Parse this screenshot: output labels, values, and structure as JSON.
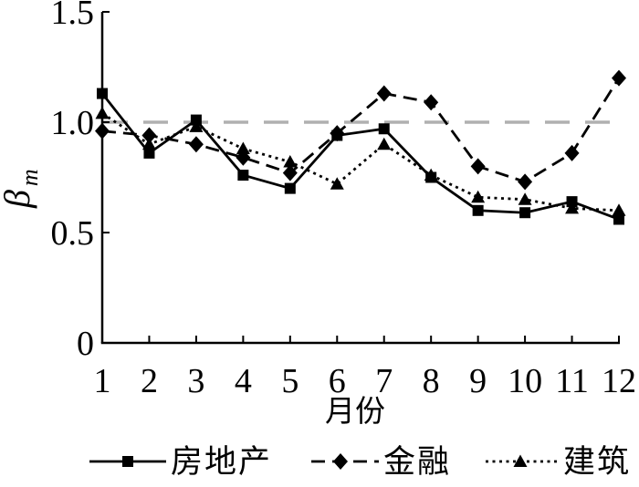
{
  "chart_data": {
    "type": "line",
    "title": "",
    "xlabel": "月份",
    "ylabel": "β_m",
    "ylabel_base": "β",
    "ylabel_sub": "m",
    "x": [
      1,
      2,
      3,
      4,
      5,
      6,
      7,
      8,
      9,
      10,
      11,
      12
    ],
    "xtick_labels": [
      "1",
      "2",
      "3",
      "4",
      "5",
      "6",
      "7",
      "8",
      "9",
      "10",
      "11",
      "12"
    ],
    "yticks": [
      0,
      0.5,
      1.0,
      1.5
    ],
    "ytick_labels": [
      "0",
      "0.5",
      "1.0",
      "1.5"
    ],
    "xlim": [
      1,
      12
    ],
    "ylim": [
      0,
      1.5
    ],
    "grid": false,
    "legend_position": "bottom",
    "background_color": "#ffffff",
    "axis_color": "#000000",
    "reference_line": {
      "y": 1.0,
      "style": "dashed",
      "color": "#b0b0b0"
    },
    "series": [
      {
        "name": "房地产",
        "marker": "square",
        "line": "solid",
        "color": "#000000",
        "values": [
          1.13,
          0.86,
          1.01,
          0.76,
          0.7,
          0.94,
          0.97,
          0.75,
          0.6,
          0.59,
          0.64,
          0.56
        ]
      },
      {
        "name": "金融",
        "marker": "diamond",
        "line": "dashed",
        "color": "#000000",
        "values": [
          0.96,
          0.94,
          0.9,
          0.84,
          0.77,
          0.95,
          1.13,
          1.09,
          0.8,
          0.73,
          0.86,
          1.2
        ]
      },
      {
        "name": "建筑",
        "marker": "triangle",
        "line": "dotted",
        "color": "#000000",
        "values": [
          1.04,
          0.9,
          0.98,
          0.88,
          0.82,
          0.72,
          0.9,
          0.76,
          0.66,
          0.65,
          0.61,
          0.6
        ]
      }
    ]
  }
}
